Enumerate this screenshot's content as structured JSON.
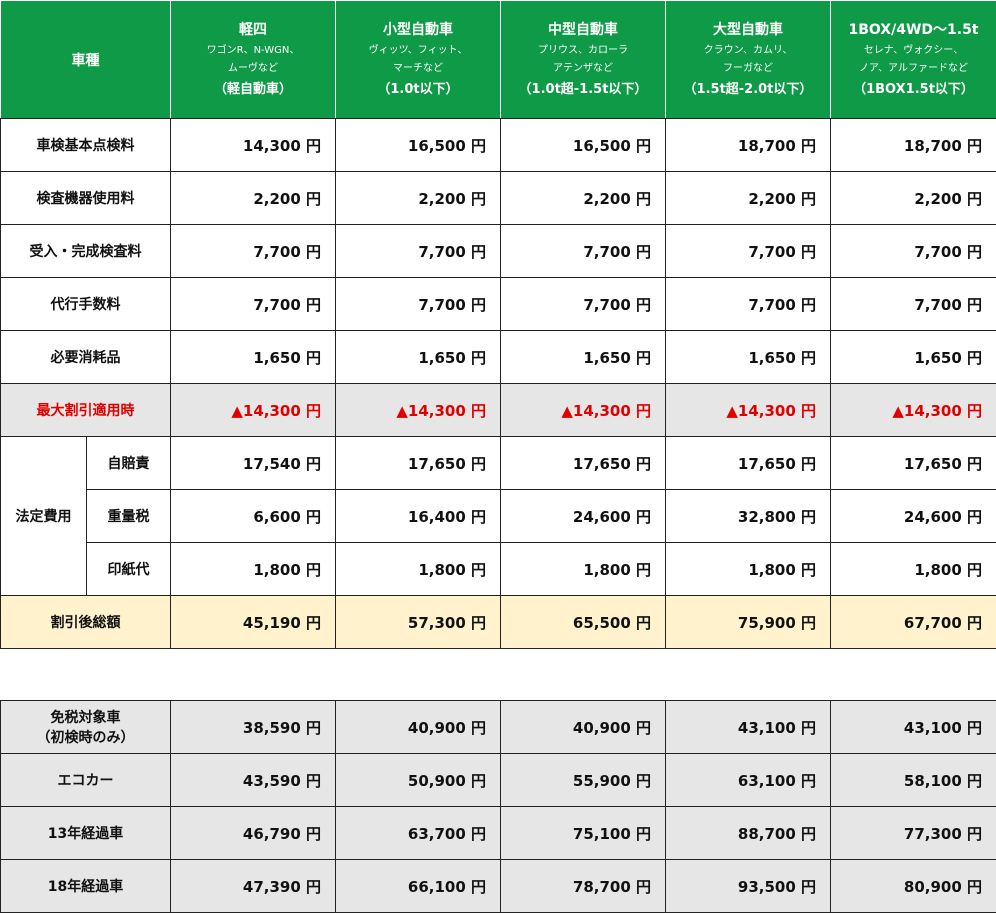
{
  "header": {
    "label": "車種",
    "columns": [
      {
        "name": "軽四",
        "models": [
          "ワゴンR、N-WGN、",
          "ムーヴなど"
        ],
        "class": "（軽自動車）"
      },
      {
        "name": "小型自動車",
        "models": [
          "ヴィッツ、フィット、",
          "マーチなど"
        ],
        "class": "（1.0t以下）"
      },
      {
        "name": "中型自動車",
        "models": [
          "プリウス、カローラ",
          "アテンザなど"
        ],
        "class": "（1.0t超-1.5t以下）"
      },
      {
        "name": "大型自動車",
        "models": [
          "クラウン、カムリ、",
          "フーガなど"
        ],
        "class": "（1.5t超-2.0t以下）"
      },
      {
        "name": "1BOX/4WD～1.5t",
        "models": [
          "セレナ、ヴォクシー、",
          "ノア、アルファードなど"
        ],
        "class": "（1BOX1.5t以下）"
      }
    ]
  },
  "fees": [
    {
      "label": "車検基本点検料",
      "values": [
        "14,300 円",
        "16,500 円",
        "16,500 円",
        "18,700 円",
        "18,700 円"
      ]
    },
    {
      "label": "検査機器使用料",
      "values": [
        "2,200 円",
        "2,200 円",
        "2,200 円",
        "2,200 円",
        "2,200 円"
      ]
    },
    {
      "label": "受入・完成検査料",
      "values": [
        "7,700 円",
        "7,700 円",
        "7,700 円",
        "7,700 円",
        "7,700 円"
      ]
    },
    {
      "label": "代行手数料",
      "values": [
        "7,700 円",
        "7,700 円",
        "7,700 円",
        "7,700 円",
        "7,700 円"
      ]
    },
    {
      "label": "必要消耗品",
      "values": [
        "1,650 円",
        "1,650 円",
        "1,650 円",
        "1,650 円",
        "1,650 円"
      ]
    }
  ],
  "discount": {
    "label": "最大割引適用時",
    "values": [
      "▲14,300 円",
      "▲14,300 円",
      "▲14,300 円",
      "▲14,300 円",
      "▲14,300 円"
    ]
  },
  "legal": {
    "label": "法定費用",
    "rows": [
      {
        "label": "自賠責",
        "values": [
          "17,540 円",
          "17,650 円",
          "17,650 円",
          "17,650 円",
          "17,650 円"
        ]
      },
      {
        "label": "重量税",
        "values": [
          "6,600 円",
          "16,400 円",
          "24,600 円",
          "32,800 円",
          "24,600 円"
        ]
      },
      {
        "label": "印紙代",
        "values": [
          "1,800 円",
          "1,800 円",
          "1,800 円",
          "1,800 円",
          "1,800 円"
        ]
      }
    ]
  },
  "total": {
    "label": "割引後総額",
    "values": [
      "45,190 円",
      "57,300 円",
      "65,500 円",
      "75,900 円",
      "67,700 円"
    ]
  },
  "variants": [
    {
      "label": [
        "免税対象車",
        "（初検時のみ）"
      ],
      "values": [
        "38,590 円",
        "40,900 円",
        "40,900 円",
        "43,100 円",
        "43,100 円"
      ]
    },
    {
      "label": [
        "エコカー"
      ],
      "values": [
        "43,590 円",
        "50,900 円",
        "55,900 円",
        "63,100 円",
        "58,100 円"
      ]
    },
    {
      "label": [
        "13年経過車"
      ],
      "values": [
        "46,790 円",
        "63,700 円",
        "75,100 円",
        "88,700 円",
        "77,300 円"
      ]
    },
    {
      "label": [
        "18年経過車"
      ],
      "values": [
        "47,390 円",
        "66,100 円",
        "78,700 円",
        "93,500 円",
        "80,900 円"
      ]
    }
  ]
}
